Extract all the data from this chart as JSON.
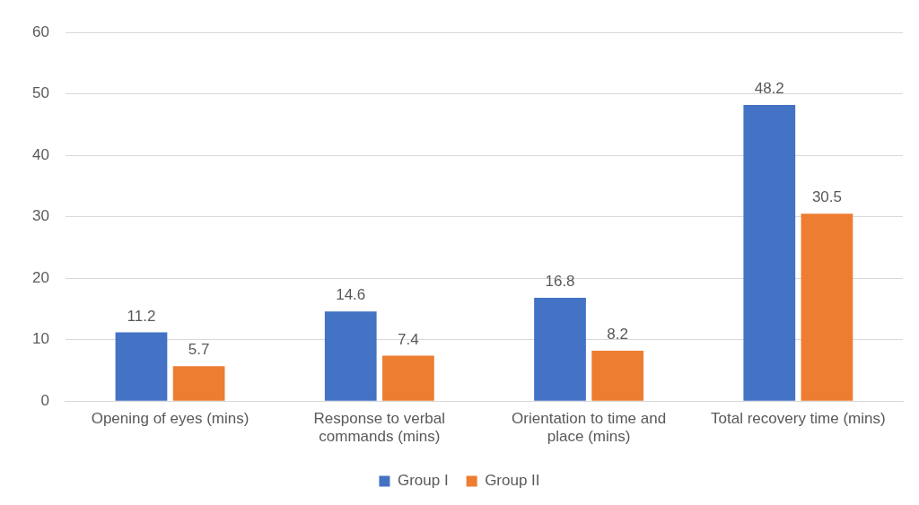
{
  "chart_data": {
    "type": "bar",
    "categories": [
      "Opening of eyes (mins)",
      "Response to verbal commands (mins)",
      "Orientation to time and place (mins)",
      "Total recovery time (mins)"
    ],
    "series": [
      {
        "name": "Group I",
        "color": "#4472c4",
        "values": [
          11.2,
          14.6,
          16.8,
          48.2
        ]
      },
      {
        "name": "Group II",
        "color": "#ed7d31",
        "values": [
          5.7,
          7.4,
          8.2,
          30.5
        ]
      }
    ],
    "ylim": [
      0,
      60
    ],
    "yticks": [
      0,
      10,
      20,
      30,
      40,
      50,
      60
    ],
    "grid": "y",
    "legend": "bottom",
    "data_labels": true
  }
}
